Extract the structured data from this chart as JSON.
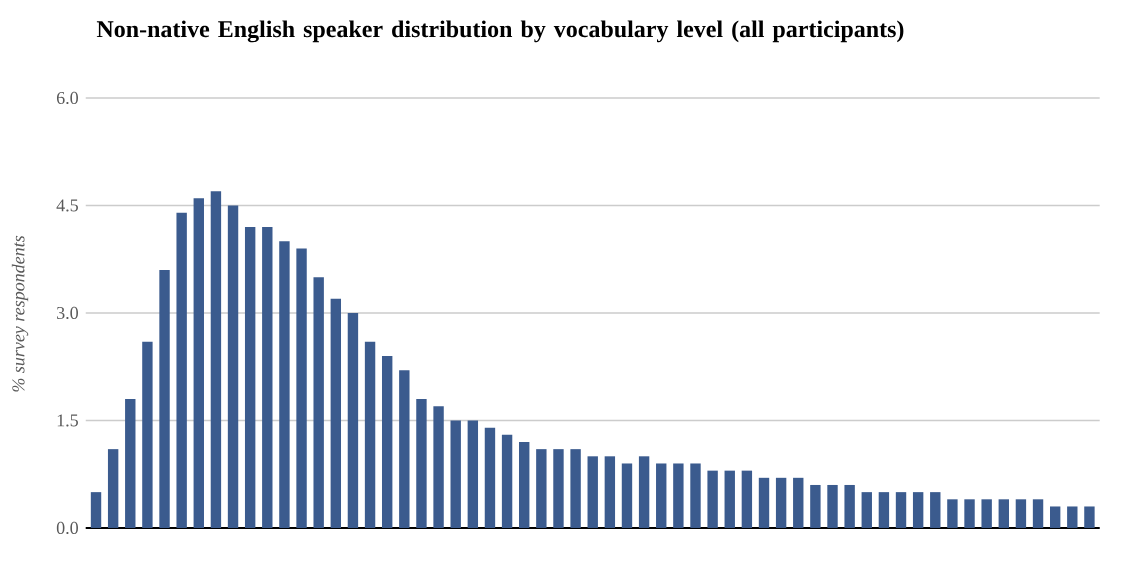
{
  "chart_data": {
    "type": "bar",
    "title": "Non-native English speaker distribution by vocabulary level (all participants)",
    "ylabel": "% survey respondents",
    "categories": [
      null,
      null,
      null,
      null,
      null,
      null,
      null,
      null,
      null,
      null,
      null,
      null,
      null,
      null,
      null,
      null,
      null,
      null,
      null,
      null,
      null,
      null,
      null,
      null,
      null,
      null,
      null,
      null,
      null,
      null,
      null,
      null,
      null,
      null,
      null,
      null,
      null,
      null,
      null,
      null,
      null,
      null,
      null,
      null,
      null,
      null,
      null,
      null,
      null,
      null,
      null,
      null,
      null,
      null,
      null,
      null,
      null,
      null,
      null
    ],
    "values": [
      0.5,
      1.1,
      1.8,
      2.6,
      3.6,
      4.4,
      4.6,
      4.7,
      4.5,
      4.2,
      4.2,
      4.0,
      3.9,
      3.5,
      3.2,
      3.0,
      2.6,
      2.4,
      2.2,
      1.8,
      1.7,
      1.5,
      1.5,
      1.4,
      1.3,
      1.2,
      1.1,
      1.1,
      1.1,
      1.0,
      1.0,
      0.9,
      1.0,
      0.9,
      0.9,
      0.9,
      0.8,
      0.8,
      0.8,
      0.7,
      0.7,
      0.7,
      0.6,
      0.6,
      0.6,
      0.5,
      0.5,
      0.5,
      0.5,
      0.5,
      0.4,
      0.4,
      0.4,
      0.4,
      0.4,
      0.4,
      0.3,
      0.3,
      0.3
    ],
    "color": "#3b5b8e",
    "ylim": [
      0,
      6
    ],
    "yticks": [
      {
        "value": 0,
        "label": "0.0"
      },
      {
        "value": 1.5,
        "label": "1.5"
      },
      {
        "value": 3,
        "label": "3.0"
      },
      {
        "value": 4.5,
        "label": "4.5"
      },
      {
        "value": 6,
        "label": "6.0"
      }
    ],
    "grid": "y"
  }
}
